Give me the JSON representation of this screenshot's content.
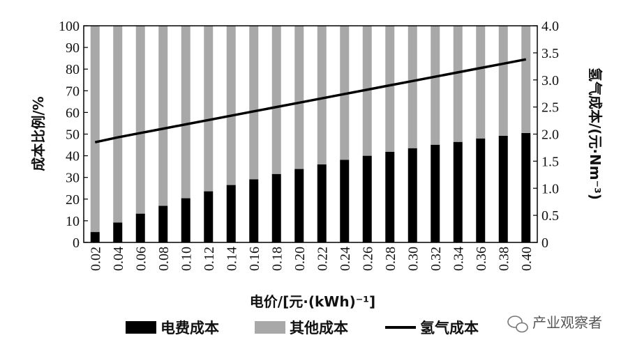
{
  "chart_data": {
    "type": "bar",
    "stacked": true,
    "categories": [
      "0.02",
      "0.04",
      "0.06",
      "0.08",
      "0.10",
      "0.12",
      "0.14",
      "0.16",
      "0.18",
      "0.20",
      "0.22",
      "0.24",
      "0.26",
      "0.28",
      "0.30",
      "0.32",
      "0.34",
      "0.36",
      "0.38",
      "0.40"
    ],
    "series": [
      {
        "name": "电费成本",
        "axis": "left",
        "color": "#000000",
        "values": [
          4.8,
          9.2,
          13.3,
          16.9,
          20.4,
          23.6,
          26.5,
          29.1,
          31.6,
          33.9,
          36.0,
          38.1,
          40.0,
          41.8,
          43.5,
          45.1,
          46.4,
          48.0,
          49.2,
          50.5
        ]
      },
      {
        "name": "其他成本",
        "axis": "left",
        "color": "#a8a8a8",
        "values": [
          95.2,
          90.8,
          86.7,
          83.1,
          79.6,
          76.4,
          73.5,
          70.9,
          68.4,
          66.1,
          64.0,
          61.9,
          60.0,
          58.2,
          56.5,
          54.9,
          53.6,
          52.0,
          50.8,
          49.5
        ]
      }
    ],
    "line_series": {
      "name": "氢气成本",
      "type": "line",
      "axis": "right",
      "color": "#000000",
      "values": [
        1.85,
        1.94,
        2.02,
        2.1,
        2.18,
        2.26,
        2.34,
        2.42,
        2.5,
        2.58,
        2.66,
        2.74,
        2.82,
        2.9,
        2.98,
        3.06,
        3.14,
        3.22,
        3.3,
        3.38
      ]
    },
    "ylabel": "成本比例/%",
    "y2label": "氢气成本/(元·Nm⁻³)",
    "xlabel": "电价/[元·(kWh)⁻¹]",
    "ylim": [
      0,
      100
    ],
    "y2lim": [
      0,
      4.0
    ],
    "yticks": [
      "0",
      "10",
      "20",
      "30",
      "40",
      "50",
      "60",
      "70",
      "80",
      "90",
      "100"
    ],
    "y2ticks": [
      "0",
      "0.5",
      "1.0",
      "1.5",
      "2.0",
      "2.5",
      "3.0",
      "3.5",
      "4.0"
    ],
    "legend_position": "bottom",
    "grid": false
  },
  "watermark": {
    "text": "产业观察者",
    "icon": "wechat-icon"
  }
}
